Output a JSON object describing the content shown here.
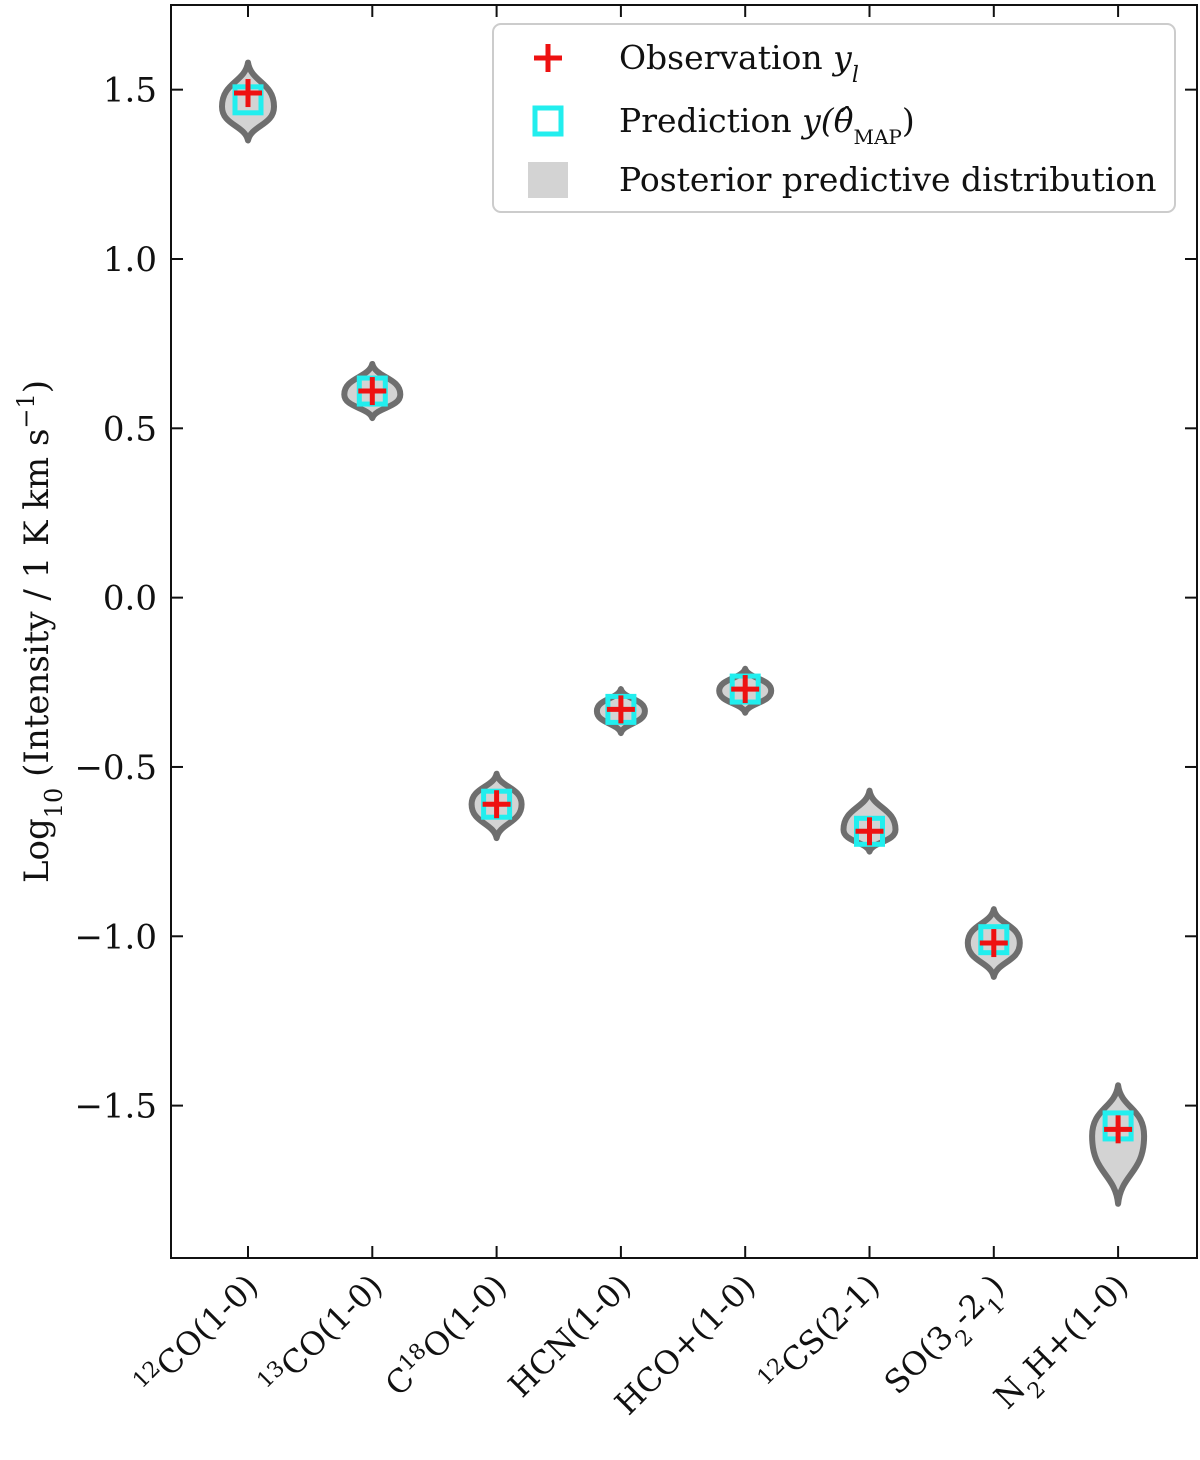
{
  "chart_data": {
    "type": "violin",
    "title": "",
    "ylabel": {
      "prefix": "Log",
      "sub": "10",
      "rest": " (Intensity / 1 K km s",
      "sup": "−1",
      "close": ")"
    },
    "ylim": [
      -1.95,
      1.75
    ],
    "yticks": [
      1.5,
      1.0,
      0.5,
      0.0,
      -0.5,
      -1.0,
      -1.5
    ],
    "ytick_labels": [
      "1.5",
      "1.0",
      "0.5",
      "0.0",
      "−0.5",
      "−1.0",
      "−1.5"
    ],
    "categories": [
      {
        "pre": "",
        "sup": "12",
        "main": "CO(1-0)",
        "sub": "",
        "post": ""
      },
      {
        "pre": "",
        "sup": "13",
        "main": "CO(1-0)",
        "sub": "",
        "post": ""
      },
      {
        "pre": "C",
        "sup": "18",
        "main": "O(1-0)",
        "sub": "",
        "post": ""
      },
      {
        "pre": "HCN(1-0)",
        "sup": "",
        "main": "",
        "sub": "",
        "post": ""
      },
      {
        "pre": "HCO+(1-0)",
        "sup": "",
        "main": "",
        "sub": "",
        "post": ""
      },
      {
        "pre": "",
        "sup": "12",
        "main": "CS(2-1)",
        "sub": "",
        "post": ""
      },
      {
        "pre": "SO(3",
        "sup": "",
        "main": "",
        "sub": "2",
        "post": "-2",
        "sub2": "1",
        "post2": ")"
      },
      {
        "pre": "N",
        "sup": "",
        "main": "",
        "sub": "2",
        "post": "H+(1-0)"
      }
    ],
    "series": [
      {
        "name": "Observation",
        "marker": "plus",
        "color": "#ee1111",
        "values": [
          1.49,
          0.61,
          -0.61,
          -0.33,
          -0.27,
          -0.69,
          -1.02,
          -1.57
        ]
      },
      {
        "name": "Prediction",
        "marker": "square",
        "color": "#22eeee",
        "values": [
          1.47,
          0.61,
          -0.61,
          -0.33,
          -0.27,
          -0.69,
          -1.01,
          -1.56
        ]
      }
    ],
    "violins": [
      {
        "min": 1.35,
        "max": 1.58,
        "peak": 1.45,
        "half_width": 0.26
      },
      {
        "min": 0.53,
        "max": 0.69,
        "peak": 0.6,
        "half_width": 0.28
      },
      {
        "min": -0.71,
        "max": -0.52,
        "peak": -0.61,
        "half_width": 0.25
      },
      {
        "min": -0.4,
        "max": -0.27,
        "peak": -0.335,
        "half_width": 0.24
      },
      {
        "min": -0.34,
        "max": -0.21,
        "peak": -0.275,
        "half_width": 0.26
      },
      {
        "min": -0.75,
        "max": -0.57,
        "peak": -0.685,
        "half_width": 0.26
      },
      {
        "min": -1.12,
        "max": -0.92,
        "peak": -1.02,
        "half_width": 0.26
      },
      {
        "min": -1.79,
        "max": -1.44,
        "peak": -1.59,
        "half_width": 0.26
      }
    ],
    "violin_fill": "#d3d3d3",
    "violin_stroke": "#6e6e6e",
    "legend": {
      "placement": "top-right",
      "entries": [
        {
          "key": "observation",
          "label": "Observation ",
          "math": "y",
          "math_sub": "l"
        },
        {
          "key": "prediction",
          "label": "Prediction ",
          "math": "y(θ̂",
          "math_sub": "MAP",
          "math_close": ")"
        },
        {
          "key": "posterior",
          "label": "Posterior predictive distribution",
          "math": "",
          "math_sub": ""
        }
      ]
    }
  }
}
